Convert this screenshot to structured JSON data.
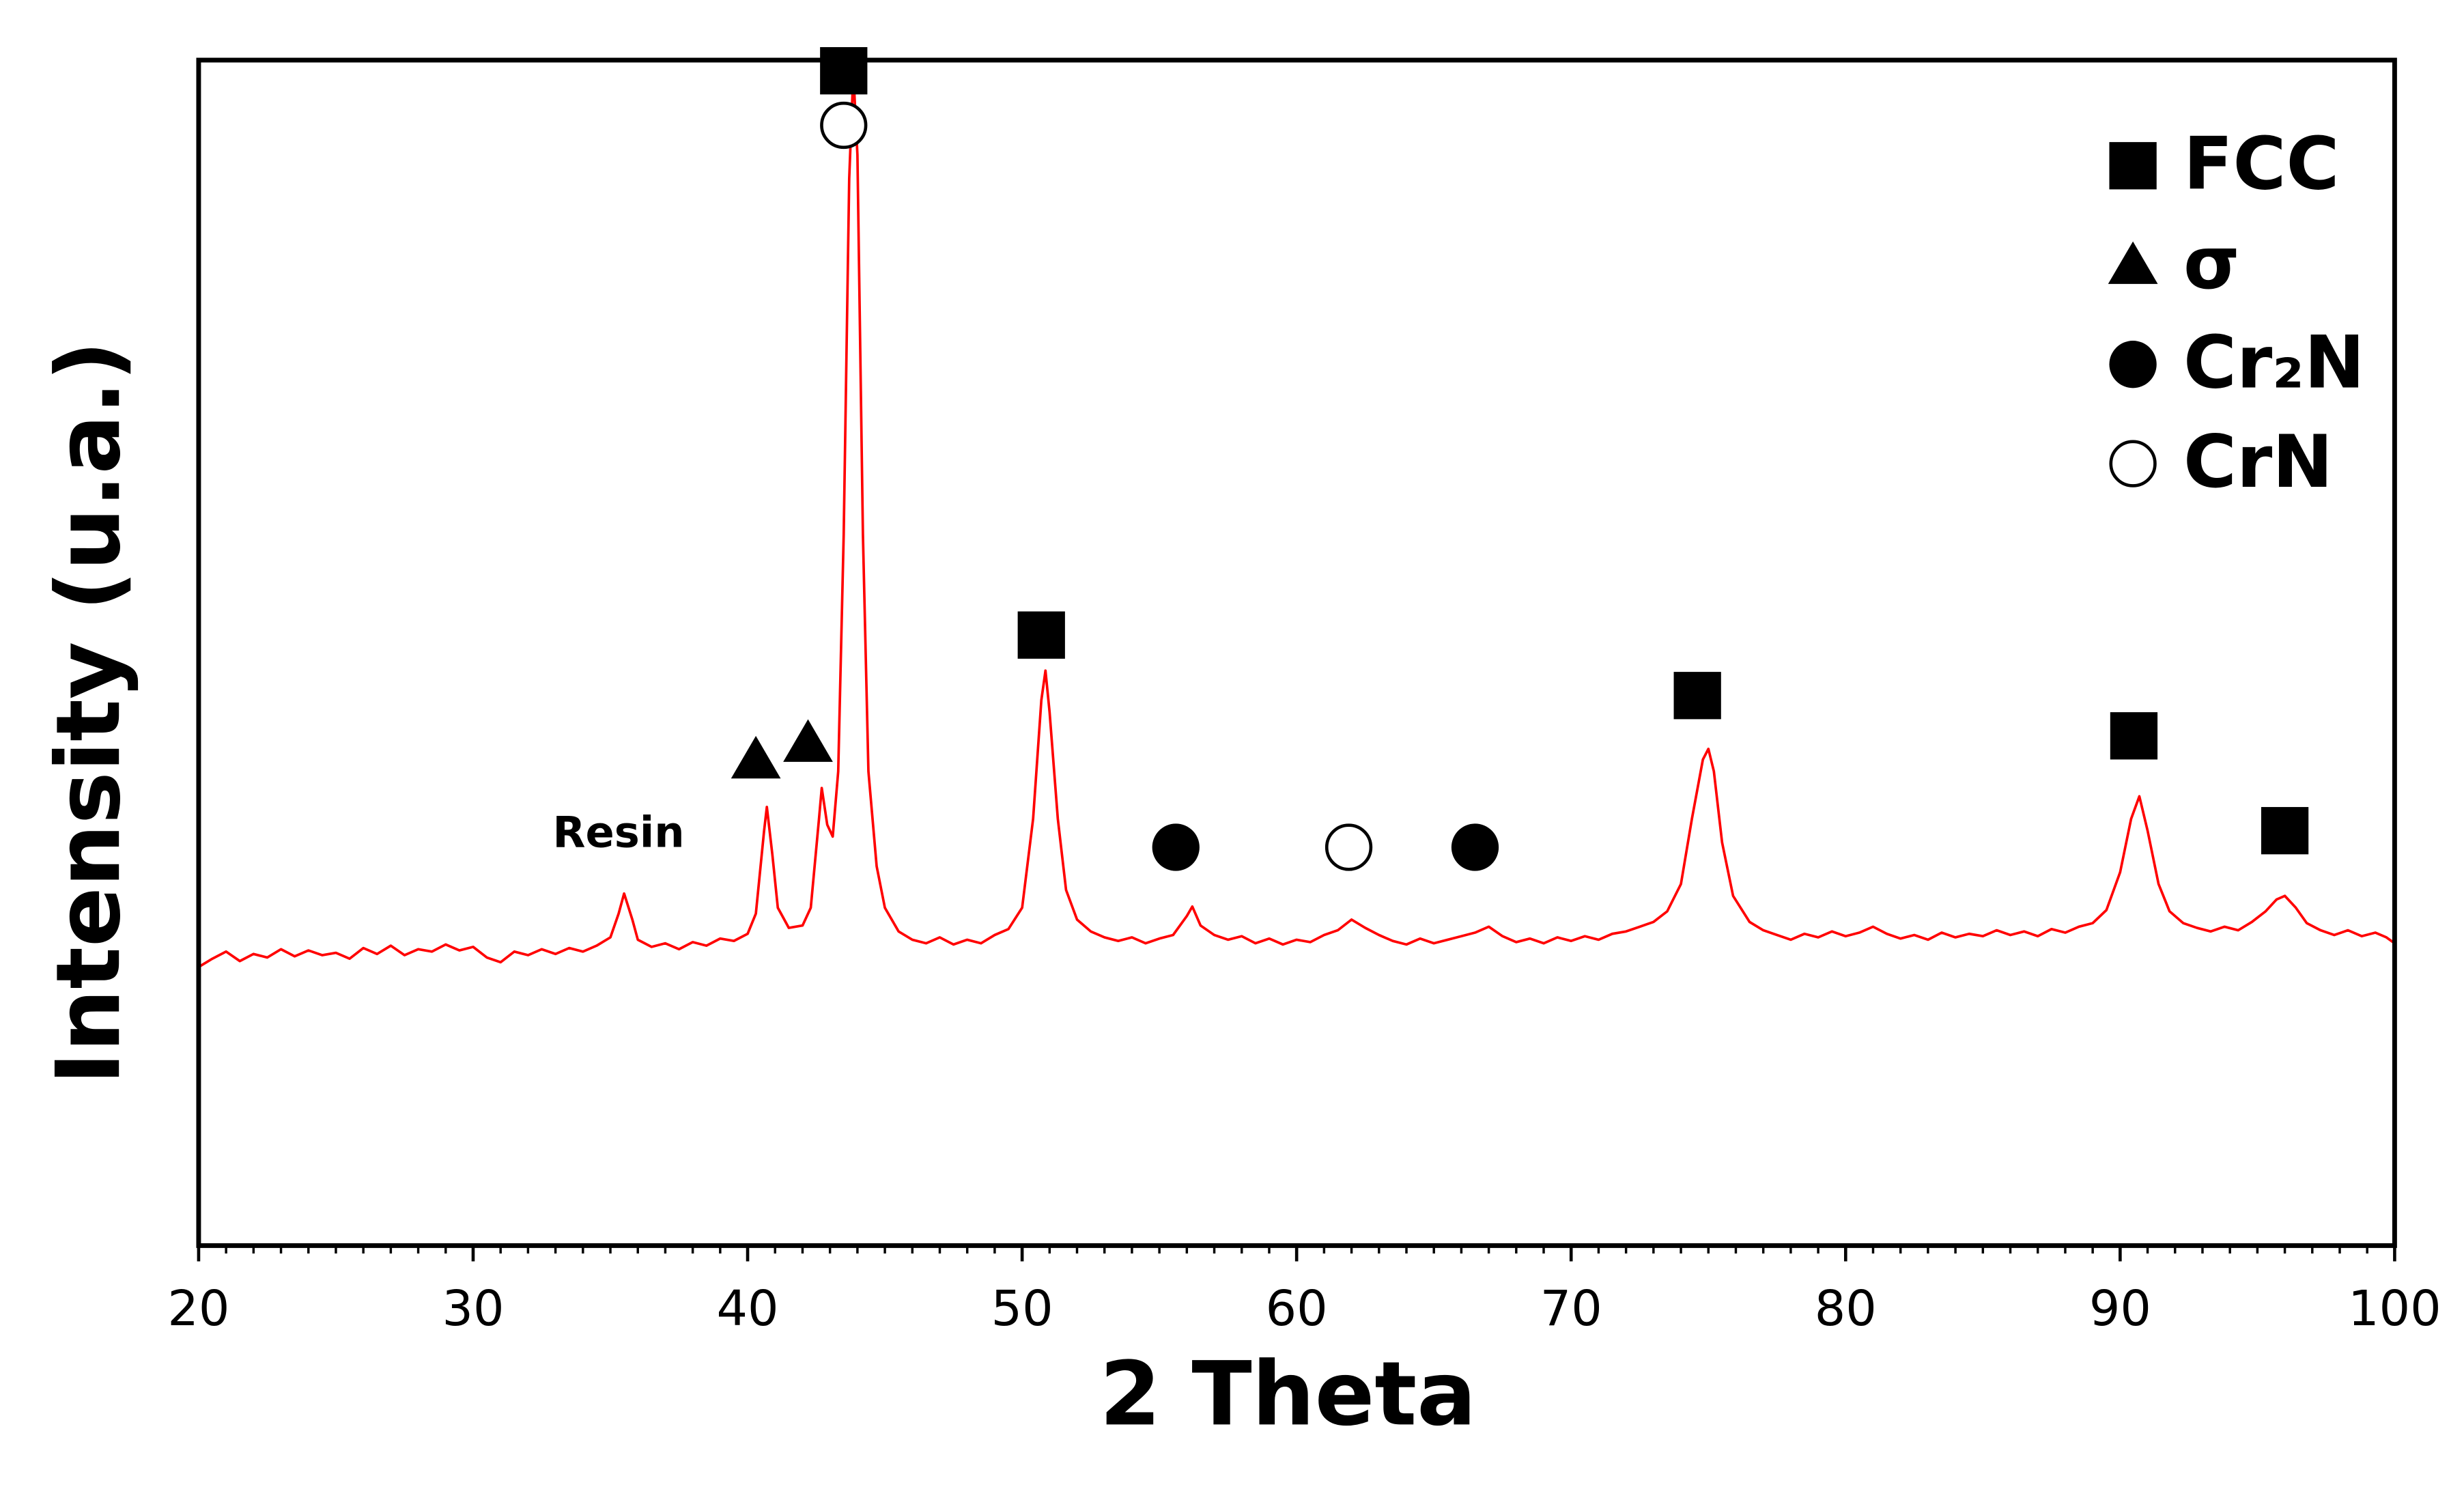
{
  "chart_data": {
    "type": "line",
    "x_label": "2 Theta",
    "y_label": "Intensity (u.a.)",
    "color": "#ff0000",
    "x": [
      20,
      20.5,
      21,
      21.5,
      22,
      22.5,
      23,
      23.5,
      24,
      24.5,
      25,
      25.5,
      26,
      26.5,
      27,
      27.5,
      28,
      28.5,
      29,
      29.5,
      30,
      30.5,
      31,
      31.5,
      32,
      32.5,
      33,
      33.5,
      34,
      34.5,
      35,
      35.3,
      35.5,
      35.8,
      36,
      36.5,
      37,
      37.5,
      38,
      38.5,
      39,
      39.5,
      40,
      40.3,
      40.6,
      40.7,
      40.9,
      41.1,
      41.5,
      42,
      42.3,
      42.6,
      42.7,
      42.9,
      43.1,
      43.3,
      43.5,
      43.7,
      43.85,
      44,
      44.2,
      44.4,
      44.7,
      45,
      45.5,
      46,
      46.5,
      47,
      47.5,
      48,
      48.5,
      49,
      49.5,
      50,
      50.4,
      50.7,
      50.85,
      51,
      51.3,
      51.6,
      52,
      52.5,
      53,
      53.5,
      54,
      54.5,
      55,
      55.5,
      56,
      56.2,
      56.5,
      57,
      57.5,
      58,
      58.5,
      59,
      59.5,
      60,
      60.5,
      61,
      61.5,
      62,
      62.5,
      63,
      63.5,
      64,
      64.5,
      65,
      65.5,
      66,
      66.5,
      67,
      67.5,
      68,
      68.5,
      69,
      69.5,
      70,
      70.5,
      71,
      71.5,
      72,
      72.5,
      73,
      73.5,
      74,
      74.4,
      74.8,
      75,
      75.2,
      75.5,
      75.9,
      76.5,
      77,
      77.5,
      78,
      78.5,
      79,
      79.5,
      80,
      80.5,
      81,
      81.5,
      82,
      82.5,
      83,
      83.5,
      84,
      84.5,
      85,
      85.5,
      86,
      86.5,
      87,
      87.5,
      88,
      88.5,
      89,
      89.5,
      90,
      90.4,
      90.7,
      91,
      91.4,
      91.8,
      92.3,
      92.8,
      93.3,
      93.8,
      94.3,
      94.8,
      95.3,
      95.7,
      96,
      96.4,
      96.8,
      97.3,
      97.8,
      98.3,
      98.8,
      99.3,
      99.7,
      100
    ],
    "values": [
      23.5,
      24.2,
      24.8,
      24.0,
      24.6,
      24.3,
      25.0,
      24.4,
      24.9,
      24.5,
      24.7,
      24.2,
      25.1,
      24.6,
      25.3,
      24.5,
      25.0,
      24.8,
      25.4,
      24.9,
      25.2,
      24.3,
      23.9,
      24.8,
      24.5,
      25.0,
      24.6,
      25.1,
      24.8,
      25.3,
      26.0,
      28.0,
      29.7,
      27.5,
      25.8,
      25.2,
      25.5,
      25.0,
      25.6,
      25.3,
      25.9,
      25.7,
      26.3,
      28.0,
      35.0,
      37.0,
      33.0,
      28.5,
      26.8,
      27.0,
      28.5,
      36.0,
      38.6,
      35.5,
      34.5,
      40,
      60,
      90,
      99,
      92,
      60,
      40,
      32,
      28.5,
      26.5,
      25.8,
      25.5,
      26.0,
      25.4,
      25.8,
      25.5,
      26.2,
      26.7,
      28.5,
      36,
      46,
      48.5,
      45,
      36,
      30,
      27.5,
      26.5,
      26.0,
      25.7,
      26.0,
      25.5,
      25.9,
      26.2,
      27.8,
      28.6,
      27.0,
      26.2,
      25.8,
      26.1,
      25.5,
      25.9,
      25.4,
      25.8,
      25.6,
      26.2,
      26.6,
      27.5,
      26.8,
      26.2,
      25.7,
      25.4,
      25.9,
      25.5,
      25.8,
      26.1,
      26.4,
      26.9,
      26.1,
      25.6,
      25.9,
      25.5,
      26.0,
      25.7,
      26.1,
      25.8,
      26.3,
      26.5,
      26.9,
      27.3,
      28.2,
      30.5,
      36,
      41,
      41.9,
      40,
      34,
      29.5,
      27.3,
      26.6,
      26.2,
      25.8,
      26.3,
      26.0,
      26.5,
      26.1,
      26.4,
      26.9,
      26.3,
      25.9,
      26.2,
      25.8,
      26.4,
      26.0,
      26.3,
      26.1,
      26.6,
      26.2,
      26.5,
      26.1,
      26.7,
      26.4,
      26.9,
      27.2,
      28.3,
      31.5,
      36,
      37.9,
      35,
      30.5,
      28.2,
      27.2,
      26.8,
      26.5,
      26.9,
      26.6,
      27.3,
      28.2,
      29.2,
      29.5,
      28.5,
      27.2,
      26.6,
      26.2,
      26.6,
      26.1,
      26.4,
      26.0,
      25.5
    ],
    "xlim": [
      20,
      100
    ],
    "xticks": [
      20,
      30,
      40,
      50,
      60,
      70,
      80,
      90,
      100
    ],
    "minor_xtick_step": 1,
    "ylim": [
      0,
      100
    ],
    "phases": [
      {
        "name": "FCC",
        "symbol": "square"
      },
      {
        "name": "σ",
        "symbol": "triangle"
      },
      {
        "name": "Cr₂N",
        "symbol": "circle"
      },
      {
        "name": "CrN",
        "symbol": "open-circle"
      }
    ],
    "markers": [
      {
        "phase": "FCC",
        "x": 43.5,
        "y": 99.1
      },
      {
        "phase": "CrN",
        "x": 43.5,
        "y": 94.5
      },
      {
        "phase": "σ",
        "x": 40.3,
        "y": 41.0
      },
      {
        "phase": "σ",
        "x": 42.2,
        "y": 42.4
      },
      {
        "phase": "FCC",
        "x": 50.7,
        "y": 51.5
      },
      {
        "phase": "Cr₂N",
        "x": 55.6,
        "y": 33.6
      },
      {
        "phase": "CrN",
        "x": 61.9,
        "y": 33.6
      },
      {
        "phase": "Cr₂N",
        "x": 66.5,
        "y": 33.6
      },
      {
        "phase": "FCC",
        "x": 74.6,
        "y": 46.4
      },
      {
        "phase": "FCC",
        "x": 90.5,
        "y": 43.0
      },
      {
        "phase": "FCC",
        "x": 96.0,
        "y": 35.0
      }
    ],
    "annotations": [
      {
        "text": "Resin",
        "x": 35.3,
        "y": 34.6
      }
    ]
  }
}
